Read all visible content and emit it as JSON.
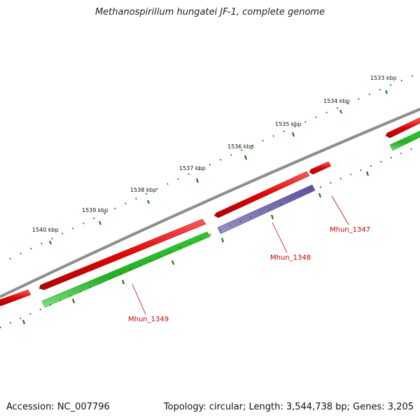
{
  "title": "Methanospirillum hungatei JF-1, complete genome",
  "footer": {
    "accession": "Accession: NC_007796",
    "summary": "Topology: circular; Length: 3,544,738 bp; Genes: 3,205"
  },
  "scale_labels": [
    "1533 kbp",
    "1534 kbp",
    "1535 kbp",
    "1536 kbp",
    "1537 kbp",
    "1538 kbp",
    "1539 kbp",
    "1540 kbp"
  ],
  "gene_labels": [
    "Mhun_1347",
    "Mhun_1348",
    "Mhun_1349"
  ],
  "colors": {
    "backbone": "#8a8a8a",
    "forward_feature": "#e60000",
    "cds": "#22bb22",
    "blue_feature": "#4a3f8c",
    "scale": "#1a7a1a",
    "label": "#cc0000"
  }
}
